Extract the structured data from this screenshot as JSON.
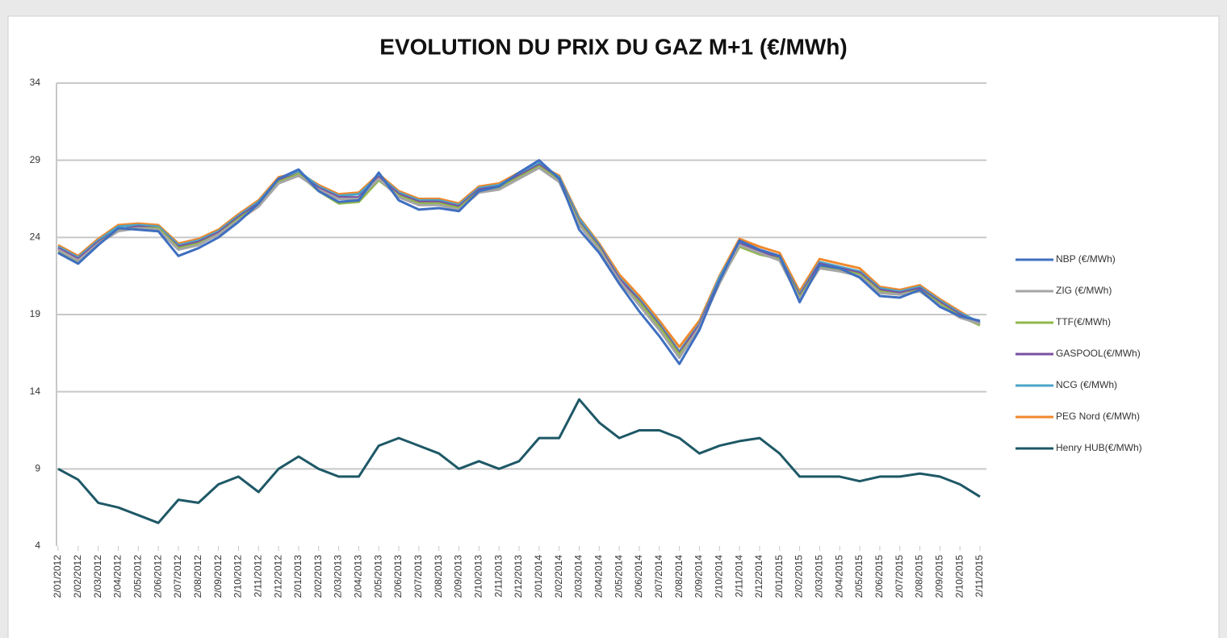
{
  "chart_data": {
    "type": "line",
    "title": "EVOLUTION DU PRIX DU GAZ M+1 (€/MWh)",
    "categories": [
      "2/01/2012",
      "2/02/2012",
      "2/03/2012",
      "2/04/2012",
      "2/05/2012",
      "2/06/2012",
      "2/07/2012",
      "2/08/2012",
      "2/09/2012",
      "2/10/2012",
      "2/11/2012",
      "2/12/2012",
      "2/01/2013",
      "2/02/2013",
      "2/03/2013",
      "2/04/2013",
      "2/05/2013",
      "2/06/2013",
      "2/07/2013",
      "2/08/2013",
      "2/09/2013",
      "2/10/2013",
      "2/11/2013",
      "2/12/2013",
      "2/01/2014",
      "2/02/2014",
      "2/03/2014",
      "2/04/2014",
      "2/05/2014",
      "2/06/2014",
      "2/07/2014",
      "2/08/2014",
      "2/09/2014",
      "2/10/2014",
      "2/11/2014",
      "2/12/2014",
      "2/01/2015",
      "2/02/2015",
      "2/03/2015",
      "2/04/2015",
      "2/05/2015",
      "2/06/2015",
      "2/07/2015",
      "2/08/2015",
      "2/09/2015",
      "2/10/2015",
      "2/11/2015"
    ],
    "series": [
      {
        "name": "NBP (€/MWh)",
        "color": "#3f6fc0",
        "values": [
          23,
          22.3,
          23.5,
          24.6,
          24.5,
          24.4,
          22.8,
          23.3,
          24,
          25,
          26.2,
          27.8,
          28.4,
          27,
          26.3,
          26.4,
          28.2,
          26.4,
          25.8,
          25.9,
          25.7,
          27,
          27.3,
          28.2,
          29,
          27.8,
          24.5,
          23,
          21,
          19.2,
          17.6,
          15.8,
          18,
          21.2,
          23.8,
          23.2,
          22.8,
          19.8,
          22.2,
          22,
          21.4,
          20.2,
          20.1,
          20.6,
          19.5,
          18.9,
          18.6
        ]
      },
      {
        "name": "ZIG (€/MWh)",
        "color": "#a5a5a5",
        "values": [
          23.2,
          22.5,
          23.6,
          24.4,
          24.6,
          24.5,
          23.2,
          23.5,
          24.2,
          25.1,
          26,
          27.5,
          28,
          27.1,
          26.5,
          26.5,
          27.8,
          26.6,
          26.1,
          26.1,
          25.8,
          26.9,
          27.1,
          27.8,
          28.5,
          27.6,
          24.8,
          23.2,
          21.2,
          19.6,
          18,
          16.2,
          18.2,
          21,
          23.5,
          23,
          22.5,
          20,
          22,
          21.8,
          21.5,
          20.4,
          20.3,
          20.5,
          19.6,
          18.8,
          18.4
        ]
      },
      {
        "name": "TTF(€/MWh)",
        "color": "#8fb84a",
        "values": [
          23.1,
          22.4,
          23.6,
          24.5,
          24.6,
          24.6,
          23.3,
          23.6,
          24.2,
          25.2,
          26.1,
          27.6,
          28.1,
          27,
          26.2,
          26.3,
          27.7,
          26.7,
          26.2,
          26.2,
          25.9,
          27,
          27.2,
          27.9,
          28.6,
          27.7,
          24.9,
          23.3,
          21.1,
          19.8,
          18.2,
          16.4,
          18.1,
          21.1,
          23.4,
          22.9,
          22.6,
          20.1,
          22.1,
          21.9,
          21.6,
          20.5,
          20.3,
          20.6,
          19.7,
          18.9,
          18.3
        ]
      },
      {
        "name": "GASPOOL(€/MWh)",
        "color": "#7b4fa0",
        "values": [
          23.3,
          22.6,
          23.7,
          24.5,
          24.7,
          24.6,
          23.4,
          23.7,
          24.3,
          25.3,
          26.2,
          27.7,
          28.1,
          27.2,
          26.6,
          26.6,
          27.9,
          26.8,
          26.3,
          26.3,
          26,
          27.1,
          27.3,
          28,
          28.7,
          27.8,
          25,
          23.4,
          21.3,
          19.9,
          18.3,
          16.5,
          18.3,
          21.2,
          23.6,
          23.1,
          22.7,
          20.2,
          22.3,
          22,
          21.7,
          20.6,
          20.4,
          20.7,
          19.8,
          19,
          18.4
        ]
      },
      {
        "name": "NCG (€/MWh)",
        "color": "#4aa5c8",
        "values": [
          23.4,
          22.7,
          23.8,
          24.7,
          24.8,
          24.7,
          23.5,
          23.8,
          24.4,
          25.4,
          26.3,
          27.8,
          28.3,
          27.3,
          26.7,
          26.8,
          28,
          26.9,
          26.4,
          26.4,
          26.1,
          27.2,
          27.4,
          28.1,
          28.8,
          27.9,
          25.2,
          23.5,
          21.4,
          20,
          18.4,
          16.6,
          18.4,
          21.4,
          23.7,
          23.2,
          22.8,
          20.3,
          22.4,
          22.1,
          21.8,
          20.7,
          20.5,
          20.8,
          19.9,
          19.1,
          18.5
        ]
      },
      {
        "name": "PEG Nord (€/MWh)",
        "color": "#f0882c",
        "values": [
          23.5,
          22.8,
          23.9,
          24.8,
          24.9,
          24.8,
          23.6,
          23.9,
          24.5,
          25.5,
          26.4,
          27.9,
          28.2,
          27.4,
          26.8,
          26.9,
          28.1,
          27,
          26.5,
          26.5,
          26.2,
          27.3,
          27.5,
          28.2,
          28.7,
          28,
          25.3,
          23.6,
          21.6,
          20.2,
          18.6,
          16.9,
          18.6,
          21.5,
          23.9,
          23.4,
          23,
          20.5,
          22.6,
          22.3,
          22,
          20.8,
          20.6,
          20.9,
          20,
          19.2,
          18.4
        ]
      },
      {
        "name": "Henry HUB(€/MWh)",
        "color": "#1e5866",
        "values": [
          9,
          8.3,
          6.8,
          6.5,
          6,
          5.5,
          7,
          6.8,
          8,
          8.5,
          7.5,
          9,
          9.8,
          9,
          8.5,
          8.5,
          10.5,
          11,
          10.5,
          10,
          9,
          9.5,
          9,
          9.5,
          11,
          11,
          13.5,
          12,
          11,
          11.5,
          11.5,
          11,
          10,
          10.5,
          10.8,
          11,
          10,
          8.5,
          8.5,
          8.5,
          8.2,
          8.5,
          8.5,
          8.7,
          8.5,
          8,
          7.2
        ]
      }
    ],
    "ylim": [
      4,
      34
    ],
    "yticks": [
      4,
      9,
      14,
      19,
      24,
      29,
      34
    ],
    "grid": true,
    "legend": "right"
  }
}
